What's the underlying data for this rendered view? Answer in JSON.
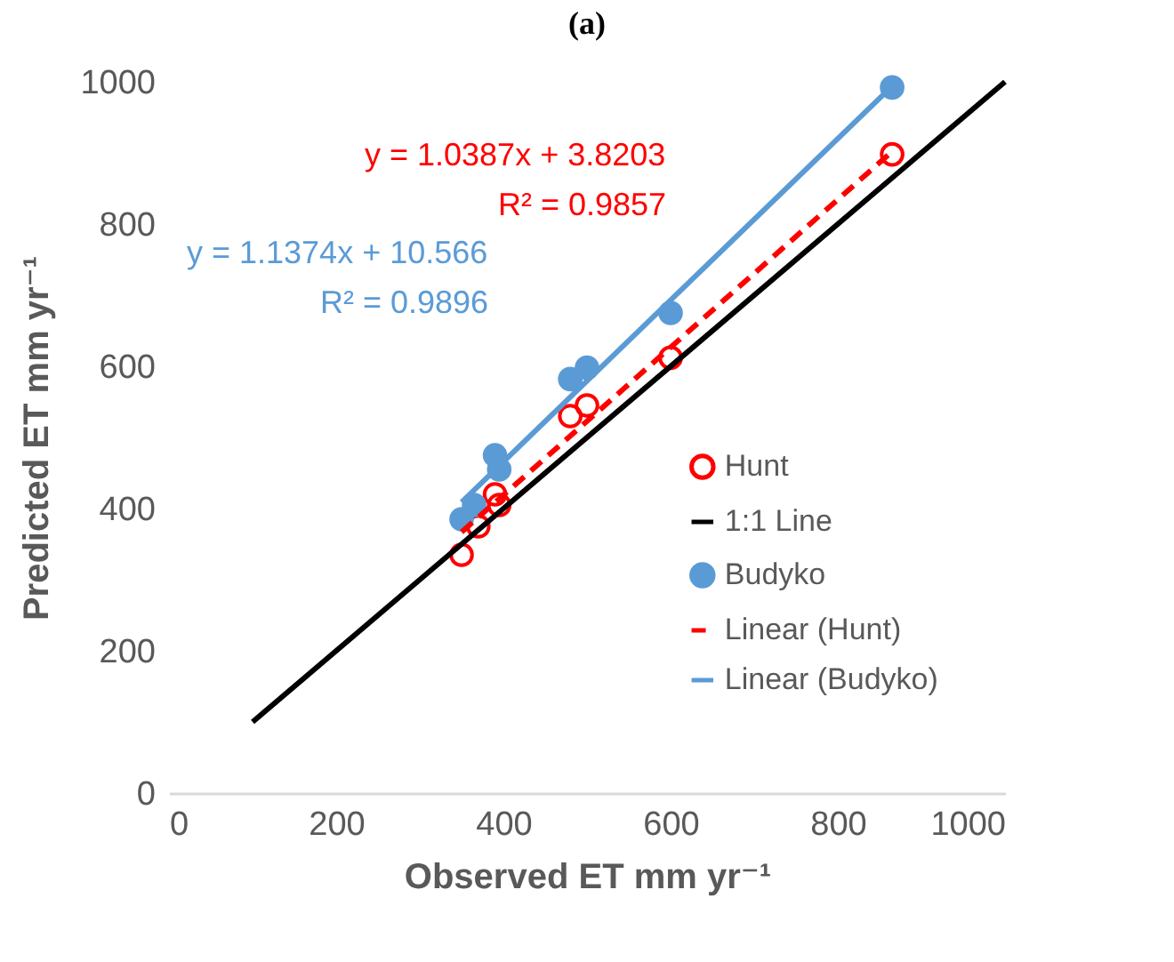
{
  "chart_data": {
    "type": "scatter",
    "title": "(a)",
    "xlabel": "Observed ET mm yr⁻¹",
    "ylabel": "Predicted ET mm yr⁻¹",
    "xlim": [
      0,
      1000
    ],
    "ylim": [
      0,
      1000
    ],
    "xticks": [
      0,
      200,
      400,
      600,
      800,
      1000
    ],
    "yticks": [
      0,
      200,
      400,
      600,
      800,
      1000
    ],
    "legend": "right",
    "annotations": [
      "y = 1.0387x + 3.8203",
      "R² = 0.9857",
      "y = 1.1374x + 10.566",
      "R² = 0.9896"
    ],
    "series": [
      {
        "name": "Hunt",
        "marker": "circle",
        "color": "#ff0000",
        "x": [
          350,
          370,
          390,
          395,
          480,
          500,
          600,
          865
        ],
        "values": [
          335,
          375,
          420,
          405,
          530,
          545,
          612,
          898
        ]
      },
      {
        "name": "1:1 Line",
        "type": "line",
        "line_style": "solid",
        "color": "#000000",
        "x": [
          100,
          1000
        ],
        "values": [
          100,
          1000
        ]
      },
      {
        "name": "Budyko",
        "marker": "circle",
        "color": "#5b9bd5",
        "x": [
          350,
          365,
          390,
          395,
          480,
          500,
          600,
          865
        ],
        "values": [
          385,
          405,
          475,
          455,
          582,
          598,
          675,
          992
        ]
      },
      {
        "name": "Linear (Hunt)",
        "type": "line",
        "color": "#ff0000",
        "line_style": "dashed",
        "x": [
          350,
          865
        ],
        "values": [
          367,
          902
        ]
      },
      {
        "name": "Linear (Budyko)",
        "type": "line",
        "line_style": "solid",
        "color": "#5b9bd5",
        "x": [
          350,
          865
        ],
        "values": [
          409,
          994
        ]
      }
    ]
  }
}
